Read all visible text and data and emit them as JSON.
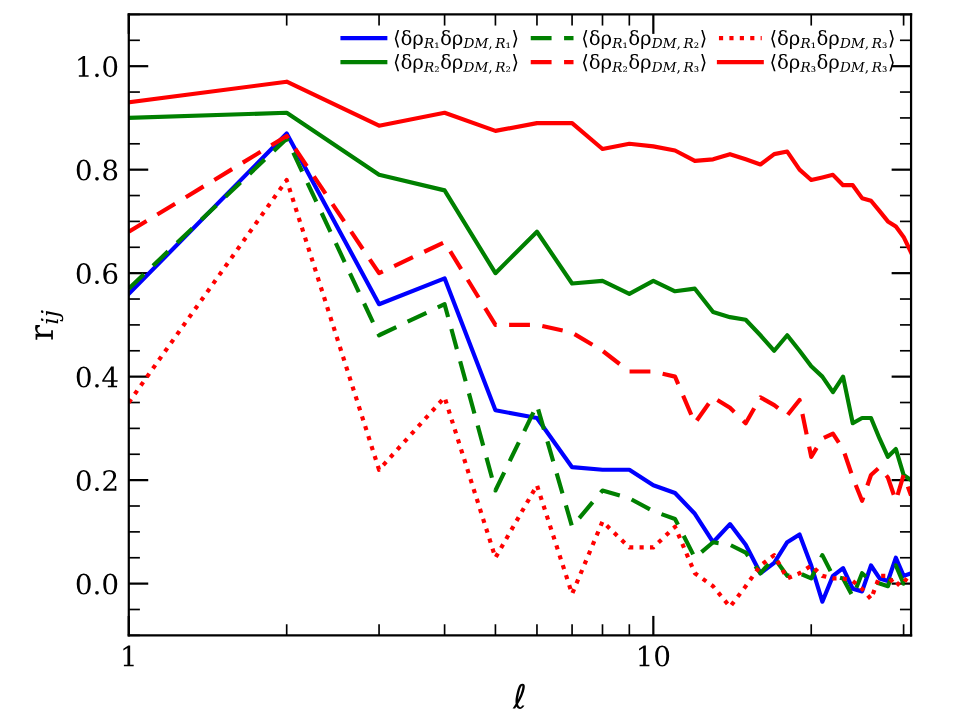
{
  "chart_data": {
    "type": "line",
    "xlabel": "ℓ",
    "ylabel": "r$_{ij}$",
    "log": "x",
    "x": [
      1,
      2,
      3,
      4,
      5,
      6,
      7,
      8,
      9,
      10,
      11,
      12,
      13,
      14,
      15,
      16,
      17,
      18,
      19,
      20,
      21,
      22,
      23,
      24,
      25,
      26,
      27,
      28,
      29,
      30,
      31
    ],
    "xlim": [
      1,
      31
    ],
    "xticks": [
      1,
      10
    ],
    "ylim": [
      -0.1,
      1.1
    ],
    "yticks": [
      {
        "value": 0,
        "label": "0.0"
      },
      0.2,
      0.4,
      0.6,
      0.8,
      {
        "value": 1,
        "label": "1.0"
      }
    ],
    "grid": false,
    "legend": "top right",
    "marker": "none",
    "series": [
      {
        "name": "⟨δρ$_{R₁}$δρ$_{DM,R₁}$⟩",
        "color": "#0000ff",
        "line_style": "solid",
        "values": [
          0.56,
          0.87,
          0.54,
          0.59,
          0.335,
          0.32,
          0.225,
          0.22,
          0.22,
          0.19,
          0.175,
          0.135,
          0.08,
          0.115,
          0.075,
          0.02,
          0.04,
          0.08,
          0.095,
          0.035,
          -0.035,
          0.015,
          0.03,
          -0.01,
          -0.015,
          0.035,
          0.01,
          0.005,
          0.05,
          0.015,
          0.02
        ]
      },
      {
        "name": "⟨δρ$_{R₁}$δρ$_{DM,R₂}$⟩",
        "color": "#008000",
        "line_style": "dashed",
        "values": [
          0.57,
          0.86,
          0.48,
          0.54,
          0.18,
          0.345,
          0.11,
          0.18,
          0.165,
          0.14,
          0.125,
          0.05,
          0.08,
          0.075,
          0.06,
          0.02,
          0.05,
          0.015,
          0.02,
          0.01,
          0.055,
          0.015,
          0.01,
          -0.025,
          0.02,
          0.005,
          0.0,
          -0.005,
          0.035,
          0.0,
          0.02
        ]
      },
      {
        "name": "⟨δρ$_{R₁}$δρ$_{DM,R₃}$⟩",
        "color": "#ff0000",
        "line_style": "dotted",
        "values": [
          0.35,
          0.78,
          0.22,
          0.36,
          0.05,
          0.19,
          -0.02,
          0.12,
          0.07,
          0.07,
          0.11,
          0.02,
          -0.005,
          -0.045,
          -0.005,
          0.035,
          0.055,
          0.01,
          0.02,
          0.035,
          0.015,
          0.01,
          0.01,
          0.005,
          -0.01,
          -0.03,
          0.015,
          0.015,
          -0.005,
          0.01,
          0.0
        ]
      },
      {
        "name": "⟨δρ$_{R₂}$δρ$_{DM,R₂}$⟩",
        "color": "#008000",
        "line_style": "solid",
        "values": [
          0.9,
          0.91,
          0.79,
          0.76,
          0.6,
          0.68,
          0.58,
          0.585,
          0.56,
          0.585,
          0.565,
          0.57,
          0.525,
          0.515,
          0.51,
          0.48,
          0.45,
          0.48,
          0.45,
          0.42,
          0.4,
          0.37,
          0.4,
          0.31,
          0.32,
          0.32,
          0.28,
          0.245,
          0.26,
          0.21,
          0.2
        ]
      },
      {
        "name": "⟨δρ$_{R₂}$δρ$_{DM,R₃}$⟩",
        "color": "#ff0000",
        "line_style": "dashed",
        "values": [
          0.68,
          0.865,
          0.6,
          0.66,
          0.5,
          0.5,
          0.485,
          0.45,
          0.41,
          0.41,
          0.4,
          0.31,
          0.36,
          0.34,
          0.31,
          0.36,
          0.345,
          0.325,
          0.355,
          0.245,
          0.28,
          0.29,
          0.26,
          0.205,
          0.16,
          0.21,
          0.225,
          0.205,
          0.16,
          0.21,
          0.17
        ]
      },
      {
        "name": "⟨δρ$_{R₃}$δρ$_{DM,R₃}$⟩",
        "color": "#ff0000",
        "line_style": "solid",
        "values": [
          0.93,
          0.97,
          0.885,
          0.91,
          0.875,
          0.89,
          0.89,
          0.84,
          0.85,
          0.845,
          0.837,
          0.817,
          0.82,
          0.83,
          0.82,
          0.81,
          0.83,
          0.835,
          0.8,
          0.78,
          0.785,
          0.79,
          0.77,
          0.77,
          0.745,
          0.74,
          0.72,
          0.7,
          0.69,
          0.67,
          0.64
        ]
      }
    ]
  }
}
